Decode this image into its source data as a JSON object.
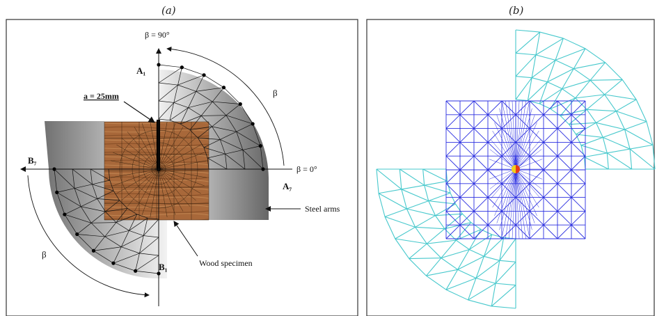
{
  "panels": [
    {
      "title": "(a)"
    },
    {
      "title": "(b)"
    }
  ],
  "annotations": {
    "beta_90": "β = 90°",
    "beta_0": "β = 0°",
    "beta": "β",
    "a1": "A₁",
    "a7": "A₇",
    "b1": "B₁",
    "b7": "B₇",
    "crack_length": "a = 25mm",
    "steel_arms": "Steel arms",
    "wood_specimen": "Wood specimen"
  },
  "colors": {
    "outer_mesh": "#46c8cc",
    "inner_mesh": "#2a2ee0",
    "wood": "#a8683a",
    "steel_dark": "#6a6a6a",
    "steel_light": "#e6e6e6"
  }
}
